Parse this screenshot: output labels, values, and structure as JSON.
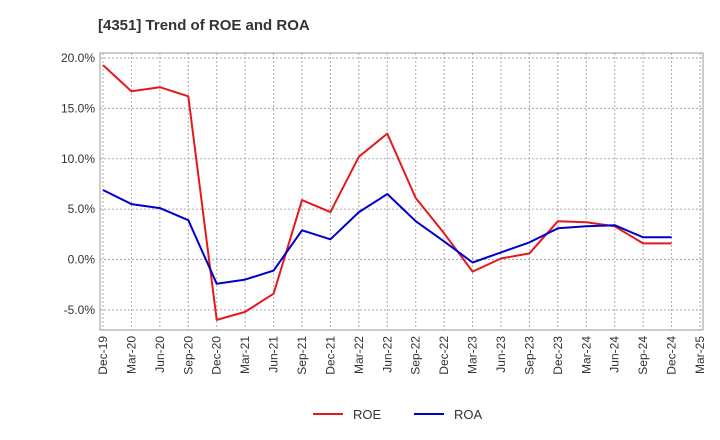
{
  "chart_data": {
    "type": "line",
    "title": "[4351]  Trend of ROE and ROA",
    "xlabel": "",
    "ylabel": "",
    "ylim": [
      -7.0,
      20.5
    ],
    "y_ticks": [
      20.0,
      15.0,
      10.0,
      5.0,
      0.0,
      -5.0
    ],
    "y_tick_labels": [
      "20.0%",
      "15.0%",
      "10.0%",
      "5.0%",
      "0.0%",
      "-5.0%"
    ],
    "categories": [
      "Dec-19",
      "Mar-20",
      "Jun-20",
      "Sep-20",
      "Dec-20",
      "Mar-21",
      "Jun-21",
      "Sep-21",
      "Dec-21",
      "Mar-22",
      "Jun-22",
      "Sep-22",
      "Dec-22",
      "Mar-23",
      "Jun-23",
      "Sep-23",
      "Dec-23",
      "Mar-24",
      "Jun-24",
      "Sep-24",
      "Dec-24",
      "Mar-25"
    ],
    "grid": true,
    "legend_position": "bottom",
    "series": [
      {
        "name": "ROE",
        "color": "#e31a1c",
        "values": [
          19.3,
          16.7,
          17.1,
          16.2,
          -6.0,
          -5.2,
          -3.4,
          5.9,
          4.7,
          10.2,
          12.5,
          6.1,
          2.6,
          -1.2,
          0.1,
          0.6,
          3.8,
          3.7,
          3.3,
          1.6,
          1.6,
          null
        ]
      },
      {
        "name": "ROA",
        "color": "#0000cc",
        "values": [
          6.9,
          5.5,
          5.1,
          3.9,
          -2.4,
          -2.0,
          -1.1,
          2.9,
          2.0,
          4.7,
          6.5,
          3.8,
          1.8,
          -0.3,
          0.7,
          1.7,
          3.1,
          3.3,
          3.4,
          2.2,
          2.2,
          null
        ]
      }
    ]
  }
}
